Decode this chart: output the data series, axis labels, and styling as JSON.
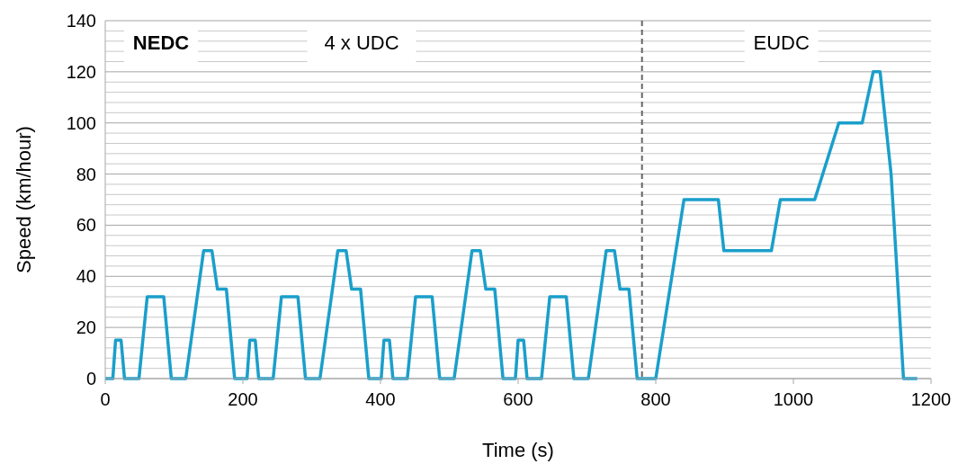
{
  "chart_data": {
    "type": "line",
    "xlabel": "Time (s)",
    "ylabel": "Speed (km/hour)",
    "x": [
      0,
      11,
      15,
      23,
      28,
      49,
      61,
      85,
      96,
      117,
      143,
      155,
      163,
      176,
      188,
      195,
      206,
      210,
      218,
      223,
      244,
      256,
      280,
      291,
      312,
      338,
      350,
      358,
      371,
      383,
      390,
      401,
      405,
      413,
      418,
      439,
      451,
      475,
      486,
      507,
      533,
      545,
      553,
      566,
      578,
      585,
      596,
      600,
      608,
      613,
      634,
      646,
      670,
      681,
      702,
      728,
      740,
      748,
      761,
      773,
      780,
      800,
      841,
      891,
      899,
      968,
      981,
      1031,
      1066,
      1100,
      1116,
      1126,
      1142,
      1160,
      1180
    ],
    "series": [
      {
        "color": "#1a9fcb",
        "values": [
          0,
          0,
          15,
          15,
          0,
          0,
          32,
          32,
          0,
          0,
          50,
          50,
          35,
          35,
          0,
          0,
          0,
          15,
          15,
          0,
          0,
          32,
          32,
          0,
          0,
          50,
          50,
          35,
          35,
          0,
          0,
          0,
          15,
          15,
          0,
          0,
          32,
          32,
          0,
          0,
          50,
          50,
          35,
          35,
          0,
          0,
          0,
          15,
          15,
          0,
          0,
          32,
          32,
          0,
          0,
          50,
          50,
          35,
          35,
          0,
          0,
          0,
          70,
          70,
          50,
          50,
          70,
          70,
          100,
          100,
          120,
          120,
          80,
          0,
          0
        ]
      }
    ],
    "xlim": [
      0,
      1200
    ],
    "xticks": [
      0,
      200,
      400,
      600,
      800,
      1000,
      1200
    ],
    "ylim": [
      0,
      140
    ],
    "yticks": [
      0,
      {
        "value": 4,
        "label": null
      },
      {
        "value": 8,
        "label": null
      },
      {
        "value": 12,
        "label": null
      },
      {
        "value": 16,
        "label": null
      },
      20,
      {
        "value": 24,
        "label": null
      },
      {
        "value": 28,
        "label": null
      },
      {
        "value": 32,
        "label": null
      },
      {
        "value": 36,
        "label": null
      },
      40,
      {
        "value": 44,
        "label": null
      },
      {
        "value": 48,
        "label": null
      },
      {
        "value": 52,
        "label": null
      },
      {
        "value": 56,
        "label": null
      },
      60,
      {
        "value": 64,
        "label": null
      },
      {
        "value": 68,
        "label": null
      },
      {
        "value": 72,
        "label": null
      },
      {
        "value": 76,
        "label": null
      },
      80,
      {
        "value": 84,
        "label": null
      },
      {
        "value": 88,
        "label": null
      },
      {
        "value": 92,
        "label": null
      },
      {
        "value": 96,
        "label": null
      },
      100,
      {
        "value": 104,
        "label": null
      },
      {
        "value": 108,
        "label": null
      },
      {
        "value": 112,
        "label": null
      },
      {
        "value": 116,
        "label": null
      },
      120,
      {
        "value": 124,
        "label": null
      },
      {
        "value": 128,
        "label": null
      },
      {
        "value": 132,
        "label": null
      },
      {
        "value": 136,
        "label": null
      },
      140
    ],
    "grid": "y",
    "marker": "none",
    "line_style": "solid",
    "ref_lines": [
      {
        "axis": "x",
        "value": 780,
        "color": "#666666",
        "line_style": "dashed"
      }
    ],
    "annotations": [
      "NEDC",
      "4 x UDC",
      "EUDC"
    ]
  }
}
